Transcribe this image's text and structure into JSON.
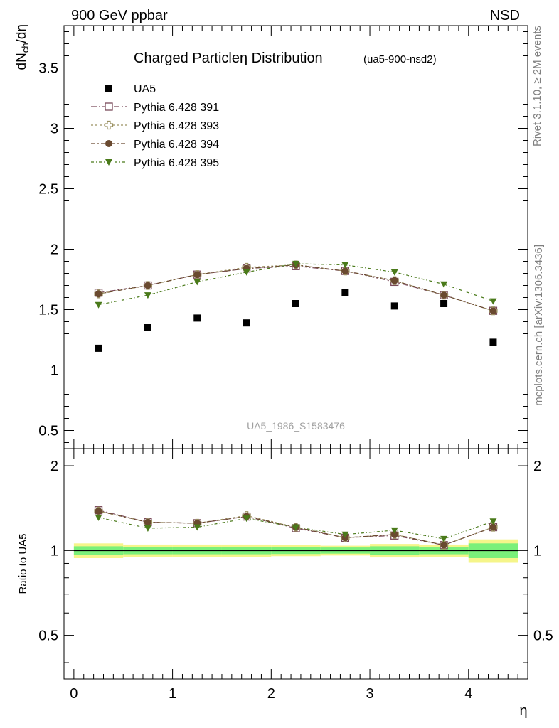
{
  "header": {
    "left": "900 GeV ppbar",
    "right": "NSD"
  },
  "side_labels": {
    "rivet": "Rivet 3.1.10, ≥ 2M events",
    "mcplots": "mcplots.cern.ch [arXiv:1306.3436]"
  },
  "colors": {
    "ua5": "#000000",
    "p391": "#7a4a5a",
    "p393": "#9a9060",
    "p394": "#6a4a30",
    "p395": "#4a7a1a",
    "band_inner": "#7af07a",
    "band_outer": "#f5f58a"
  },
  "chart_data": [
    {
      "type": "scatter",
      "title": "Charged Particleη Distribution",
      "subtitle": "(ua5-900-nsd2)",
      "xlabel": "η",
      "ylabel": "dN_ch/dη",
      "watermark": "UA5_1986_S1583476",
      "xlim": [
        -0.1,
        4.6
      ],
      "ylim": [
        0.35,
        3.85
      ],
      "grid": false,
      "legend_position": "top-left",
      "x_ticks": [
        "0",
        "1",
        "2",
        "3",
        "4"
      ],
      "y_ticks": [
        "0.5",
        "1",
        "1.5",
        "2",
        "2.5",
        "3",
        "3.5"
      ],
      "x": [
        0.25,
        0.75,
        1.25,
        1.75,
        2.25,
        2.75,
        3.25,
        3.75,
        4.25
      ],
      "series": [
        {
          "name": "UA5",
          "marker": "square-filled",
          "values": [
            1.18,
            1.35,
            1.43,
            1.39,
            1.55,
            1.64,
            1.53,
            1.55,
            1.23
          ]
        },
        {
          "name": "Pythia 6.428 391",
          "marker": "square-open",
          "values": [
            1.64,
            1.7,
            1.79,
            1.84,
            1.86,
            1.82,
            1.73,
            1.62,
            1.49
          ]
        },
        {
          "name": "Pythia 6.428 393",
          "marker": "cross-open",
          "values": [
            1.63,
            1.7,
            1.79,
            1.85,
            1.87,
            1.82,
            1.74,
            1.62,
            1.49
          ]
        },
        {
          "name": "Pythia 6.428 394",
          "marker": "circle-filled",
          "values": [
            1.63,
            1.7,
            1.79,
            1.84,
            1.87,
            1.82,
            1.74,
            1.62,
            1.49
          ]
        },
        {
          "name": "Pythia 6.428 395",
          "marker": "triangle-down",
          "values": [
            1.54,
            1.62,
            1.73,
            1.81,
            1.88,
            1.87,
            1.81,
            1.71,
            1.57
          ]
        }
      ]
    },
    {
      "type": "scatter",
      "ylabel": "Ratio to UA5",
      "xlabel": "η",
      "xlim": [
        -0.1,
        4.6
      ],
      "ylim": [
        0.35,
        2.3
      ],
      "log_y": true,
      "y_ticks": [
        "0.5",
        "1",
        "2"
      ],
      "x_ticks": [
        "0",
        "1",
        "2",
        "3",
        "4"
      ],
      "x": [
        0.25,
        0.75,
        1.25,
        1.75,
        2.25,
        2.75,
        3.25,
        3.75,
        4.25
      ],
      "bins": [
        [
          0.0,
          0.5
        ],
        [
          0.5,
          1.0
        ],
        [
          1.0,
          1.5
        ],
        [
          1.5,
          2.0
        ],
        [
          2.0,
          2.5
        ],
        [
          2.5,
          3.0
        ],
        [
          3.0,
          3.5
        ],
        [
          3.5,
          4.0
        ],
        [
          4.0,
          4.5
        ]
      ],
      "band_inner": [
        [
          0.965,
          1.035
        ],
        [
          0.97,
          1.03
        ],
        [
          0.97,
          1.03
        ],
        [
          0.97,
          1.03
        ],
        [
          0.972,
          1.028
        ],
        [
          0.975,
          1.025
        ],
        [
          0.965,
          1.035
        ],
        [
          0.97,
          1.03
        ],
        [
          0.94,
          1.06
        ]
      ],
      "band_outer": [
        [
          0.94,
          1.06
        ],
        [
          0.95,
          1.05
        ],
        [
          0.95,
          1.05
        ],
        [
          0.95,
          1.05
        ],
        [
          0.955,
          1.045
        ],
        [
          0.96,
          1.04
        ],
        [
          0.945,
          1.055
        ],
        [
          0.95,
          1.05
        ],
        [
          0.905,
          1.095
        ]
      ],
      "series": [
        {
          "name": "Pythia 6.428 391",
          "values": [
            1.39,
            1.26,
            1.25,
            1.32,
            1.2,
            1.11,
            1.13,
            1.045,
            1.21
          ]
        },
        {
          "name": "Pythia 6.428 393",
          "values": [
            1.38,
            1.26,
            1.25,
            1.33,
            1.21,
            1.11,
            1.14,
            1.045,
            1.21
          ]
        },
        {
          "name": "Pythia 6.428 394",
          "values": [
            1.38,
            1.26,
            1.25,
            1.32,
            1.21,
            1.11,
            1.14,
            1.045,
            1.21
          ]
        },
        {
          "name": "Pythia 6.428 395",
          "values": [
            1.31,
            1.2,
            1.21,
            1.3,
            1.21,
            1.14,
            1.18,
            1.1,
            1.27
          ]
        }
      ]
    }
  ]
}
